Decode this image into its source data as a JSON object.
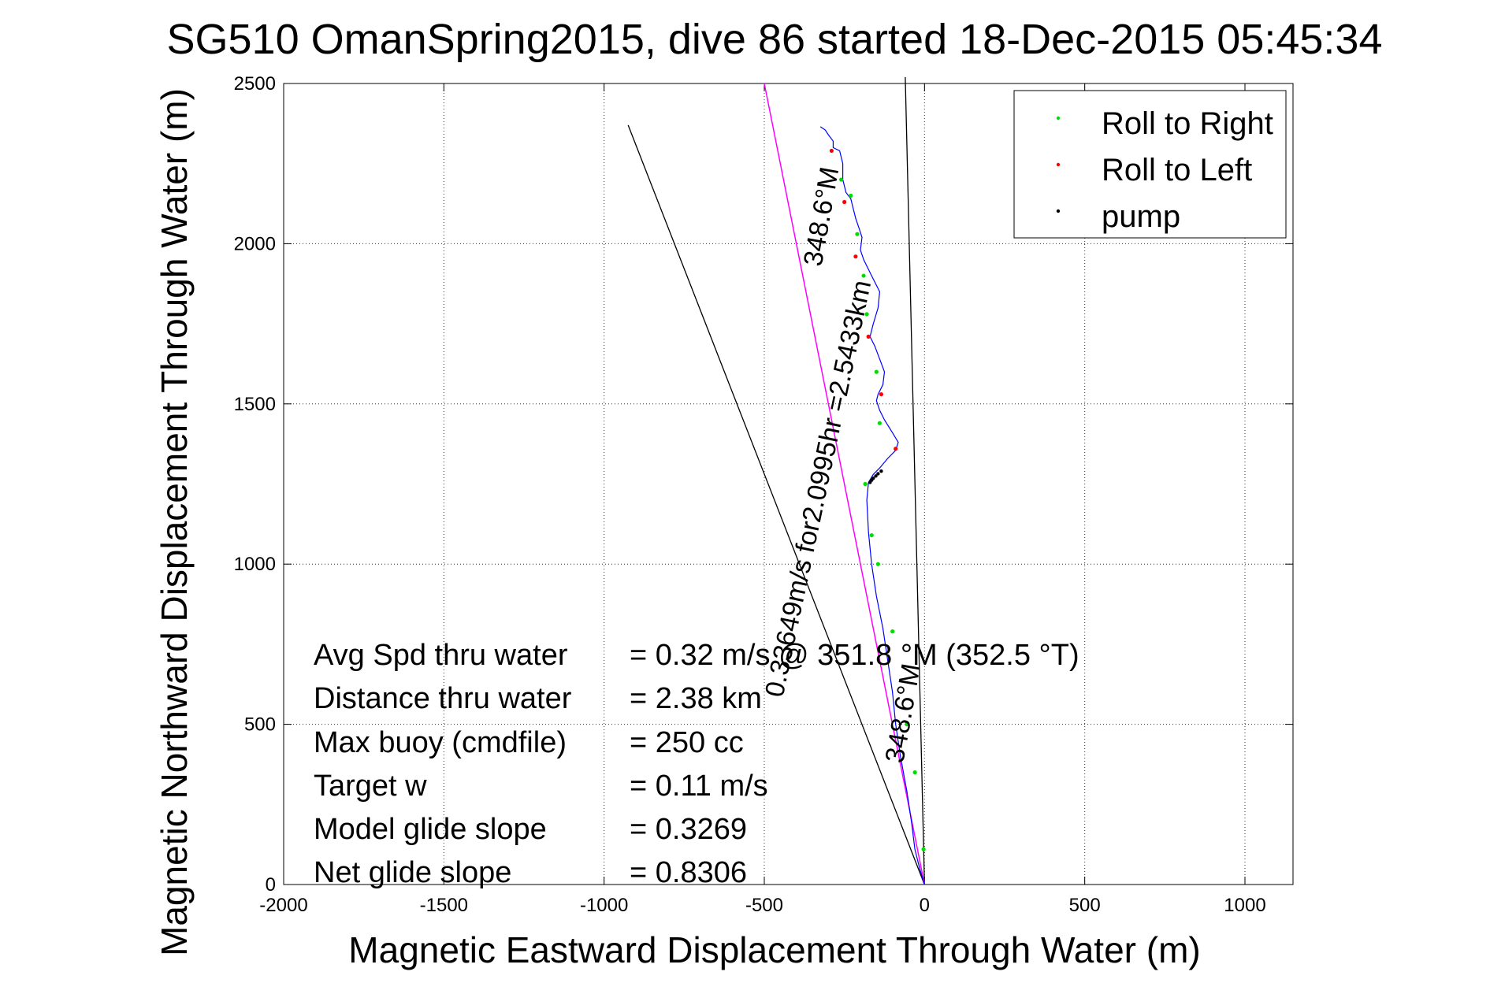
{
  "chart_data": {
    "type": "line",
    "title": "SG510 OmanSpring2015, dive 86 started 18-Dec-2015 05:45:34",
    "xlabel": "Magnetic Eastward Displacement Through Water (m)",
    "ylabel": "Magnetic Northward Displacement Through Water (m)",
    "xlim": [
      -2000,
      1150
    ],
    "ylim": [
      0,
      2500
    ],
    "xticks": [
      -2000,
      -1500,
      -1000,
      -500,
      0,
      500,
      1000
    ],
    "yticks": [
      0,
      500,
      1000,
      1500,
      2000,
      2500
    ],
    "xtick_labels": [
      "-2000",
      "-1500",
      "-1000",
      "-500",
      "0",
      "500",
      "1000"
    ],
    "ytick_labels": [
      "0",
      "500",
      "1000",
      "1500",
      "2000",
      "2500"
    ],
    "grid": true,
    "legend_position": "top-right",
    "legend": [
      {
        "name": "Roll to Right",
        "color": "#00dd00"
      },
      {
        "name": "Roll to Left",
        "color": "#ff0000"
      },
      {
        "name": "pump",
        "color": "#000000"
      }
    ],
    "track": {
      "color": "#0000ff",
      "x": [
        0,
        -15,
        -30,
        -40,
        -55,
        -75,
        -90,
        -100,
        -115,
        -130,
        -150,
        -165,
        -175,
        -180,
        -175,
        -160,
        -140,
        -115,
        -90,
        -82,
        -100,
        -125,
        -140,
        -150,
        -145,
        -130,
        -125,
        -140,
        -155,
        -170,
        -160,
        -145,
        -140,
        -165,
        -190,
        -200,
        -195,
        -205,
        -215,
        -225,
        -230,
        -245,
        -255,
        -255,
        -265,
        -285,
        -285,
        -300,
        -310,
        -325
      ],
      "y": [
        0,
        50,
        110,
        190,
        290,
        400,
        500,
        600,
        700,
        800,
        900,
        1000,
        1100,
        1200,
        1255,
        1280,
        1300,
        1330,
        1355,
        1380,
        1410,
        1450,
        1480,
        1510,
        1530,
        1560,
        1600,
        1640,
        1680,
        1710,
        1750,
        1800,
        1850,
        1900,
        1950,
        1980,
        2020,
        2050,
        2080,
        2120,
        2140,
        2160,
        2200,
        2250,
        2290,
        2300,
        2320,
        2340,
        2355,
        2365
      ]
    },
    "heading_line": {
      "color": "#ff00ff",
      "x": [
        0,
        -500
      ],
      "y": [
        0,
        2500
      ]
    },
    "reference_lines": [
      {
        "color": "#000000",
        "x": [
          0,
          -925
        ],
        "y": [
          0,
          2370
        ]
      },
      {
        "color": "#000000",
        "x": [
          0,
          -60
        ],
        "y": [
          0,
          2520
        ]
      }
    ],
    "roll_right_points": {
      "color": "#00dd00",
      "x": [
        -3,
        -30,
        -55,
        -100,
        -145,
        -165,
        -185,
        -140,
        -150,
        -180,
        -190,
        -210,
        -230,
        -260
      ],
      "y": [
        110,
        350,
        500,
        790,
        1000,
        1090,
        1250,
        1440,
        1600,
        1780,
        1900,
        2030,
        2150,
        2200
      ]
    },
    "roll_left_points": {
      "color": "#ff0000",
      "x": [
        -90,
        -135,
        -175,
        -215,
        -250,
        -290
      ],
      "y": [
        1360,
        1530,
        1710,
        1960,
        2130,
        2290
      ]
    },
    "pump_points": {
      "color": "#000000",
      "x": [
        -170,
        -165,
        -160,
        -152,
        -145,
        -135
      ],
      "y": [
        1255,
        1262,
        1268,
        1275,
        1282,
        1290
      ]
    },
    "annotations": [
      {
        "text": "348.6°M",
        "x": -295,
        "y": 2080,
        "angle": -80
      },
      {
        "text": "0.33649m/s for2.0995hr =2.5433km",
        "x": -305,
        "y": 1230,
        "angle": -78
      },
      {
        "text": "348.6°M",
        "x": -40,
        "y": 530,
        "angle": -80
      }
    ],
    "stats": {
      "labels": [
        "Avg Spd thru water",
        "Distance thru water",
        "Max buoy (cmdfile)",
        "Target w",
        "Model glide slope",
        "Net glide slope"
      ],
      "values": [
        "=  0.32 m/s @ 351.8 °M (352.5 °T)",
        "=  2.38 km",
        "= 250 cc",
        "= 0.11 m/s",
        "= 0.3269",
        "= 0.8306"
      ]
    }
  }
}
